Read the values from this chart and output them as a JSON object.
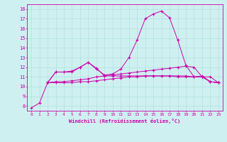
{
  "xlabel": "Windchill (Refroidissement éolien,°C)",
  "xlim": [
    -0.5,
    23.5
  ],
  "ylim": [
    7.5,
    18.5
  ],
  "yticks": [
    8,
    9,
    10,
    11,
    12,
    13,
    14,
    15,
    16,
    17,
    18
  ],
  "xticks": [
    0,
    1,
    2,
    3,
    4,
    5,
    6,
    7,
    8,
    9,
    10,
    11,
    12,
    13,
    14,
    15,
    16,
    17,
    18,
    19,
    20,
    21,
    22,
    23
  ],
  "bg_color": "#cff0f0",
  "line_color": "#cc00aa",
  "grid_color": "#aadddd",
  "series": [
    {
      "x": [
        0,
        1,
        2,
        3,
        4,
        5,
        6,
        7,
        8,
        9,
        10,
        11,
        12,
        13,
        14,
        15,
        16,
        17,
        18,
        19,
        20,
        21,
        22,
        23
      ],
      "y": [
        7.8,
        8.3,
        10.4,
        11.5,
        11.5,
        11.6,
        12.0,
        12.5,
        11.8,
        11.2,
        11.3,
        11.8,
        13.0,
        14.8,
        17.0,
        17.5,
        17.8,
        17.1,
        14.8,
        12.2,
        11.0,
        11.0,
        11.0,
        10.4
      ]
    },
    {
      "x": [
        2,
        3,
        4,
        5,
        6,
        7,
        8,
        9,
        10,
        11,
        12,
        13,
        14,
        15,
        16,
        17,
        18,
        19,
        20,
        21,
        22,
        23
      ],
      "y": [
        10.4,
        10.4,
        10.4,
        10.4,
        10.5,
        10.5,
        10.6,
        10.7,
        10.8,
        10.9,
        11.0,
        11.0,
        11.1,
        11.1,
        11.1,
        11.1,
        11.1,
        11.1,
        11.0,
        11.0,
        10.5,
        10.4
      ]
    },
    {
      "x": [
        2,
        3,
        4,
        5,
        6,
        7,
        8,
        9,
        10,
        11,
        12,
        13,
        14,
        15,
        16,
        17,
        18,
        19,
        20,
        21,
        22,
        23
      ],
      "y": [
        10.4,
        10.5,
        10.5,
        10.6,
        10.7,
        10.8,
        11.0,
        11.1,
        11.2,
        11.3,
        11.4,
        11.5,
        11.6,
        11.7,
        11.8,
        11.9,
        12.0,
        12.1,
        12.0,
        11.0,
        10.5,
        10.4
      ]
    },
    {
      "x": [
        2,
        3,
        4,
        5,
        6,
        7,
        8,
        9,
        10,
        11,
        12,
        13,
        14,
        15,
        16,
        17,
        18,
        19,
        20,
        21,
        22,
        23
      ],
      "y": [
        10.4,
        11.5,
        11.5,
        11.5,
        12.0,
        12.5,
        11.9,
        11.1,
        11.1,
        11.1,
        11.1,
        11.1,
        11.1,
        11.1,
        11.1,
        11.1,
        11.0,
        11.0,
        11.0,
        11.1,
        10.5,
        10.4
      ]
    }
  ]
}
